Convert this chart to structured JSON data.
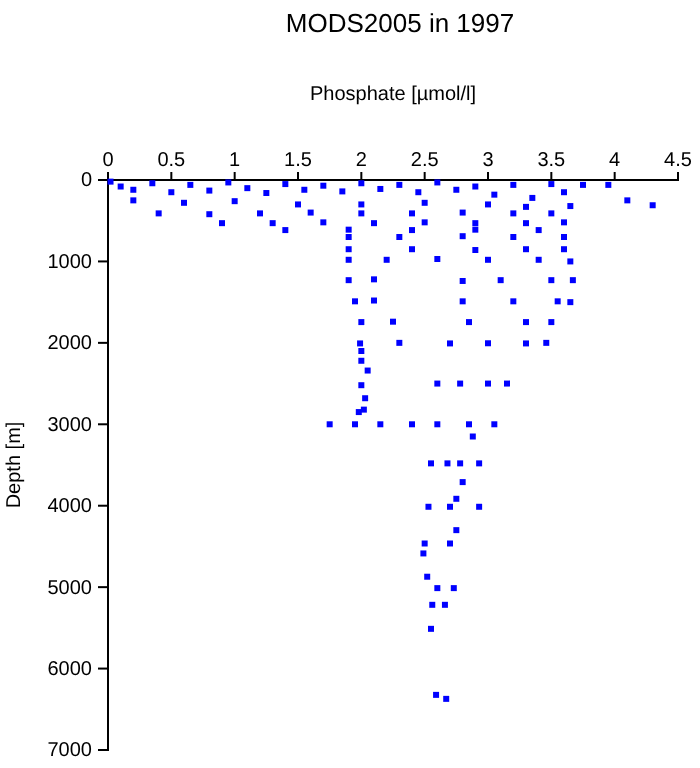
{
  "chart_data": {
    "type": "scatter",
    "title": "MODS2005 in 1997",
    "xlabel": "Phosphate [µmol/l]",
    "ylabel": "Depth [m]",
    "xlim": [
      0,
      4.5
    ],
    "xticks": [
      0,
      0.5,
      1,
      1.5,
      2,
      2.5,
      3,
      3.5,
      4,
      4.5
    ],
    "ylim": [
      7000,
      0
    ],
    "yticks": [
      0,
      1000,
      2000,
      3000,
      4000,
      5000,
      6000,
      7000
    ],
    "marker": "square",
    "grid": false,
    "series": [
      {
        "color": "#0000ff",
        "x": [
          0.02,
          0.1,
          0.2,
          0.35,
          0.5,
          0.65,
          0.8,
          0.95,
          1.1,
          1.25,
          1.4,
          1.55,
          1.7,
          1.85,
          2.0,
          2.15,
          2.3,
          2.45,
          2.6,
          2.75,
          2.9,
          3.05,
          3.2,
          3.35,
          3.5,
          3.6,
          3.75,
          3.95,
          4.1,
          4.3,
          3.65,
          0.2,
          0.6,
          1.0,
          1.5,
          2.0,
          2.5,
          3.0,
          3.3,
          0.4,
          0.8,
          1.2,
          1.6,
          2.0,
          2.4,
          2.8,
          3.2,
          3.5,
          0.9,
          1.3,
          1.7,
          2.1,
          2.5,
          2.9,
          3.3,
          3.6,
          1.4,
          1.9,
          2.4,
          2.9,
          3.4,
          1.9,
          2.3,
          2.8,
          3.2,
          3.6,
          1.9,
          2.4,
          2.9,
          3.3,
          3.6,
          1.9,
          2.2,
          2.6,
          3.0,
          3.4,
          3.65,
          3.67,
          1.9,
          2.1,
          2.8,
          3.1,
          3.5,
          1.95,
          2.1,
          2.8,
          3.2,
          3.55,
          3.65,
          2.0,
          2.25,
          2.85,
          3.3,
          3.5,
          1.99,
          2.3,
          2.7,
          3.0,
          3.3,
          3.46,
          2.0,
          2.0,
          2.05,
          2.0,
          2.03,
          2.02,
          1.98,
          2.6,
          2.78,
          3.0,
          3.15,
          1.75,
          1.95,
          2.15,
          2.4,
          2.6,
          2.85,
          3.05,
          2.88,
          2.55,
          2.68,
          2.78,
          2.93,
          2.8,
          2.75,
          2.53,
          2.7,
          2.93,
          2.75,
          2.5,
          2.7,
          2.49,
          2.52,
          2.6,
          2.73,
          2.56,
          2.66,
          2.55,
          2.59,
          2.67
        ],
        "values": [
          20,
          80,
          120,
          40,
          150,
          60,
          130,
          30,
          100,
          160,
          50,
          120,
          70,
          140,
          40,
          110,
          60,
          150,
          30,
          120,
          80,
          180,
          60,
          220,
          50,
          150,
          60,
          60,
          250,
          310,
          320,
          250,
          280,
          260,
          300,
          300,
          280,
          300,
          330,
          410,
          420,
          410,
          400,
          410,
          410,
          400,
          410,
          410,
          530,
          530,
          520,
          530,
          520,
          530,
          530,
          520,
          615,
          610,
          615,
          610,
          615,
          700,
          700,
          690,
          700,
          700,
          850,
          850,
          860,
          850,
          850,
          980,
          980,
          970,
          980,
          980,
          1000,
          1230,
          1230,
          1220,
          1240,
          1230,
          1230,
          1490,
          1480,
          1490,
          1490,
          1490,
          1500,
          1745,
          1740,
          1745,
          1745,
          1745,
          2007,
          2000,
          2007,
          2005,
          2007,
          2000,
          2100,
          2220,
          2340,
          2520,
          2680,
          2820,
          2850,
          2500,
          2500,
          2500,
          2500,
          3000,
          3000,
          3000,
          3000,
          3000,
          3000,
          3000,
          3150,
          3480,
          3480,
          3480,
          3480,
          3710,
          3915,
          4013,
          4013,
          4013,
          4300,
          4464,
          4464,
          4586,
          4872,
          5012,
          5012,
          5217,
          5217,
          5512,
          6323,
          6372
        ]
      }
    ]
  }
}
